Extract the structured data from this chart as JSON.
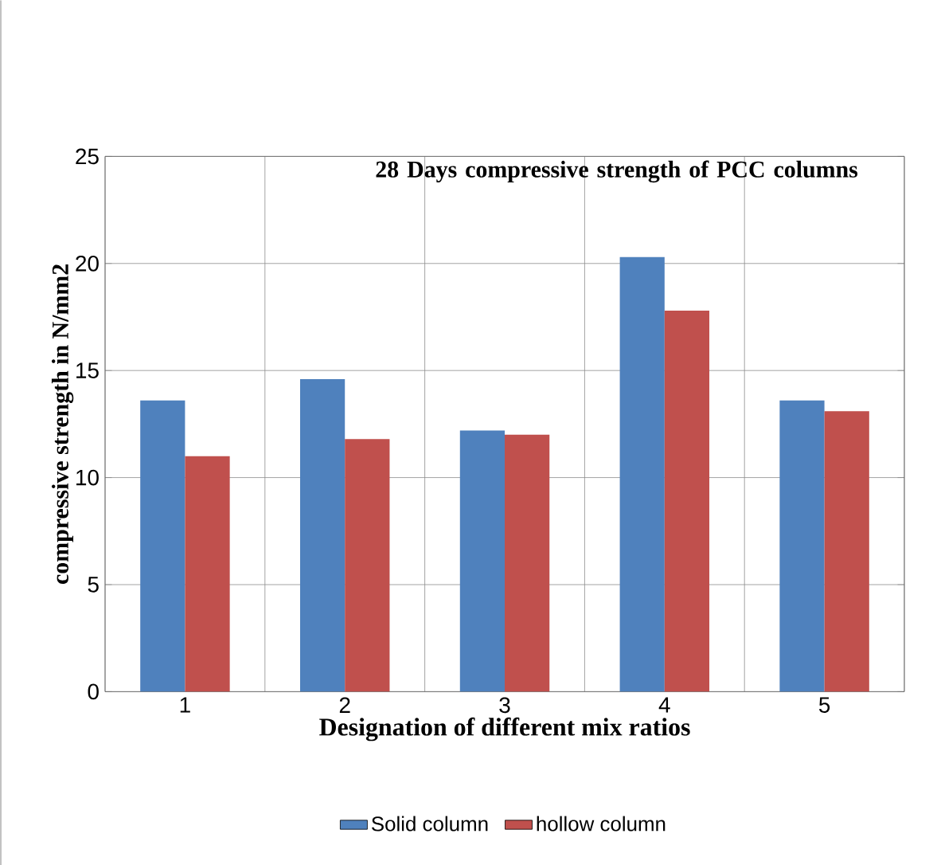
{
  "chart_data": {
    "type": "bar",
    "title": "28 Days compressive strength of PCC columns",
    "xlabel": "Designation of different mix ratios",
    "ylabel": "compressive strength in N/mm2",
    "categories": [
      "1",
      "2",
      "3",
      "4",
      "5"
    ],
    "series": [
      {
        "name": "Solid column",
        "color": "#4f81bd",
        "values": [
          13.6,
          14.6,
          12.2,
          20.3,
          13.6
        ]
      },
      {
        "name": "hollow column",
        "color": "#c0504d",
        "values": [
          11.0,
          11.8,
          12.0,
          17.8,
          13.1
        ]
      }
    ],
    "ylim": [
      0,
      25
    ],
    "yticks": [
      0,
      5,
      10,
      15,
      20,
      25
    ],
    "grid": true,
    "legend": "bottom"
  }
}
